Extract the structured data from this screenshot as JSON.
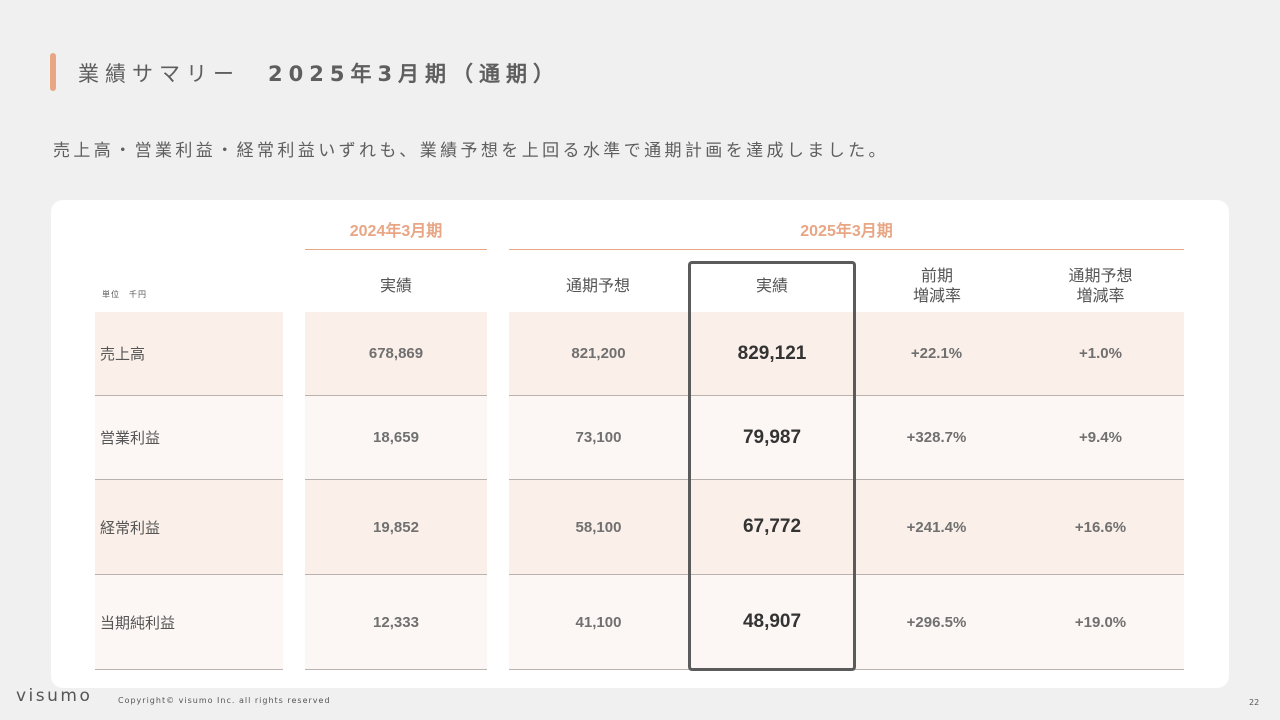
{
  "slide": {
    "title": "業績サマリー",
    "title_period": "2025年3月期（通期）",
    "subtitle": "売上高・営業利益・経常利益いずれも、業績予想を上回る水準で通期計画を達成しました。",
    "accent_color": "#e8a684",
    "page_number": "22"
  },
  "footer": {
    "logo": "visumo",
    "copyright": "Copyright© visumo Inc. all rights reserved"
  },
  "table": {
    "unit_label": "単位　千円",
    "periods": {
      "prev": "2024年3月期",
      "curr": "2025年3月期"
    },
    "headers": {
      "prev_actual": "実績",
      "forecast": "通期予想",
      "actual": "実績",
      "yoy_line1": "前期",
      "yoy_line2": "増減率",
      "vs_forecast_line1": "通期予想",
      "vs_forecast_line2": "増減率"
    },
    "rows": [
      {
        "label": "売上高",
        "prev_actual": "678,869",
        "forecast": "821,200",
        "actual": "829,121",
        "yoy": "+22.1%",
        "vs_forecast": "+1.0%"
      },
      {
        "label": "営業利益",
        "prev_actual": "18,659",
        "forecast": "73,100",
        "actual": "79,987",
        "yoy": "+328.7%",
        "vs_forecast": "+9.4%"
      },
      {
        "label": "経常利益",
        "prev_actual": "19,852",
        "forecast": "58,100",
        "actual": "67,772",
        "yoy": "+241.4%",
        "vs_forecast": "+16.6%"
      },
      {
        "label": "当期純利益",
        "prev_actual": "12,333",
        "forecast": "41,100",
        "actual": "48,907",
        "yoy": "+296.5%",
        "vs_forecast": "+19.0%"
      }
    ]
  }
}
